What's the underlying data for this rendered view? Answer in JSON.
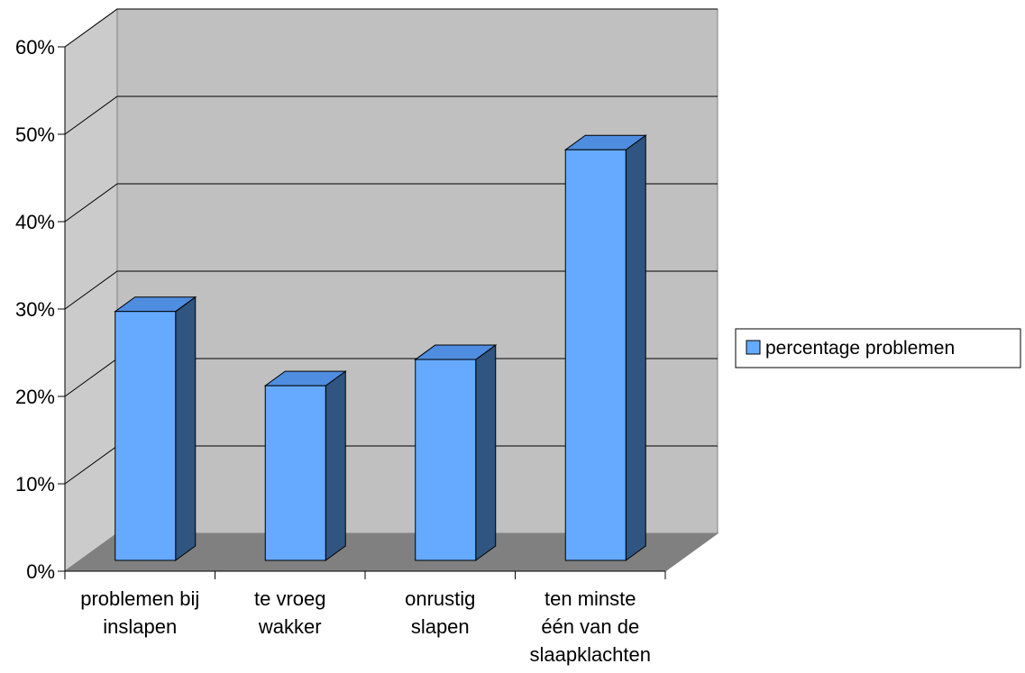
{
  "chart_data": {
    "type": "bar",
    "categories": [
      [
        "problemen bij",
        "inslapen"
      ],
      [
        "te vroeg",
        "wakker"
      ],
      [
        "onrustig",
        "slapen"
      ],
      [
        "ten minste",
        "één van de",
        "slaapklachten"
      ]
    ],
    "series": [
      {
        "name": "percentage problemen",
        "values": [
          0.29,
          0.205,
          0.235,
          0.475
        ]
      }
    ],
    "yticks": [
      "0%",
      "10%",
      "20%",
      "30%",
      "40%",
      "50%",
      "60%"
    ],
    "ylim": [
      0,
      0.6
    ],
    "grid": true,
    "legend": "right",
    "three_d": true,
    "colors": {
      "bar_front": "#66aaff",
      "bar_top": "#4f8de0",
      "bar_side": "#2f5580",
      "wall": "#c0c0c0",
      "side_wall": "#cbcbcb",
      "floor": "#808080"
    }
  }
}
